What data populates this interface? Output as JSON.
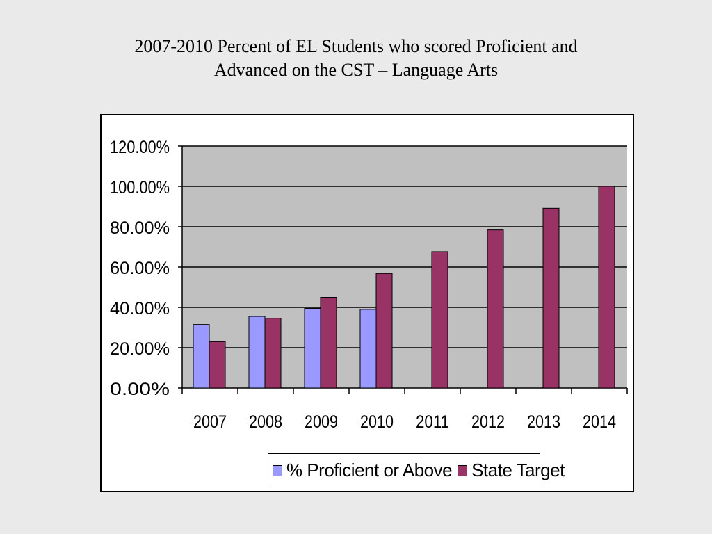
{
  "slide": {
    "title_line1": "2007-2010 Percent of EL Students who scored Proficient and",
    "title_line2": "Advanced on the CST – Language Arts"
  },
  "colors": {
    "proficient": "#9999ff",
    "target": "#993366",
    "plot_bg": "#c0c0c0"
  },
  "chart_data": {
    "type": "bar",
    "title": "2007-2010 Percent of EL Students who scored Proficient and Advanced on the CST – Language Arts",
    "xlabel": "",
    "ylabel": "",
    "categories": [
      "2007",
      "2008",
      "2009",
      "2010",
      "2011",
      "2012",
      "2013",
      "2014"
    ],
    "series": [
      {
        "name": "% Proficient or Above",
        "values": [
          31.5,
          35.5,
          39.5,
          39.0,
          null,
          null,
          null,
          null
        ]
      },
      {
        "name": "State Target",
        "values": [
          23.0,
          34.6,
          45.0,
          56.8,
          67.6,
          78.4,
          89.2,
          100.0
        ]
      }
    ],
    "ylim": [
      0,
      120
    ],
    "yticks": [
      "0.00%",
      "20.00%",
      "40.00%",
      "60.00%",
      "80.00%",
      "100.00%",
      "120.00%"
    ],
    "grid": true,
    "legend_position": "bottom"
  }
}
